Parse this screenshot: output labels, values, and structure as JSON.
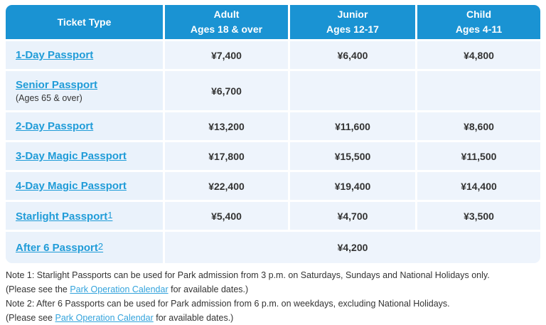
{
  "colors": {
    "header_bg": "#1A93D3",
    "header_text": "#FFFFFF",
    "label_cell_bg": "#EAF2FB",
    "value_cell_bg": "#EEF4FC",
    "ticket_link": "#209CD8",
    "price_text": "#333333",
    "note_link": "#33A3DC"
  },
  "header": {
    "col0": "Ticket Type",
    "col1_line1": "Adult",
    "col1_line2": "Ages 18 & over",
    "col2_line1": "Junior",
    "col2_line2": "Ages 12-17",
    "col3_line1": "Child",
    "col3_line2": "Ages 4-11"
  },
  "table": {
    "rows": [
      {
        "name": "1-Day Passport",
        "adult": "¥7,400",
        "junior": "¥6,400",
        "child": "¥4,800"
      },
      {
        "name": "Senior Passport",
        "sub": "(Ages 65 & over)",
        "adult": "¥6,700",
        "junior": "",
        "child": ""
      },
      {
        "name": "2-Day Passport",
        "adult": "¥13,200",
        "junior": "¥11,600",
        "child": "¥8,600"
      },
      {
        "name": "3-Day Magic Passport",
        "adult": "¥17,800",
        "junior": "¥15,500",
        "child": "¥11,500"
      },
      {
        "name": "4-Day Magic Passport",
        "adult": "¥22,400",
        "junior": "¥19,400",
        "child": "¥14,400"
      },
      {
        "name": "Starlight Passport",
        "sup": "1",
        "adult": "¥5,400",
        "junior": "¥4,700",
        "child": "¥3,500"
      },
      {
        "name": "After 6 Passport",
        "sup": "2",
        "merged_value": "¥4,200"
      }
    ]
  },
  "notes": [
    {
      "pre": "Note 1: Starlight Passports can be used for Park admission from 3 p.m. on Saturdays, Sundays and National Holidays only."
    },
    {
      "pre": "(Please see the ",
      "link": "Park Operation Calendar",
      "post": " for available dates.)"
    },
    {
      "pre": "Note 2: After 6 Passports can be used for Park admission from 6 p.m. on weekdays, excluding National Holidays."
    },
    {
      "pre": "(Please see ",
      "link": "Park Operation Calendar",
      "post": " for available dates.)"
    }
  ]
}
